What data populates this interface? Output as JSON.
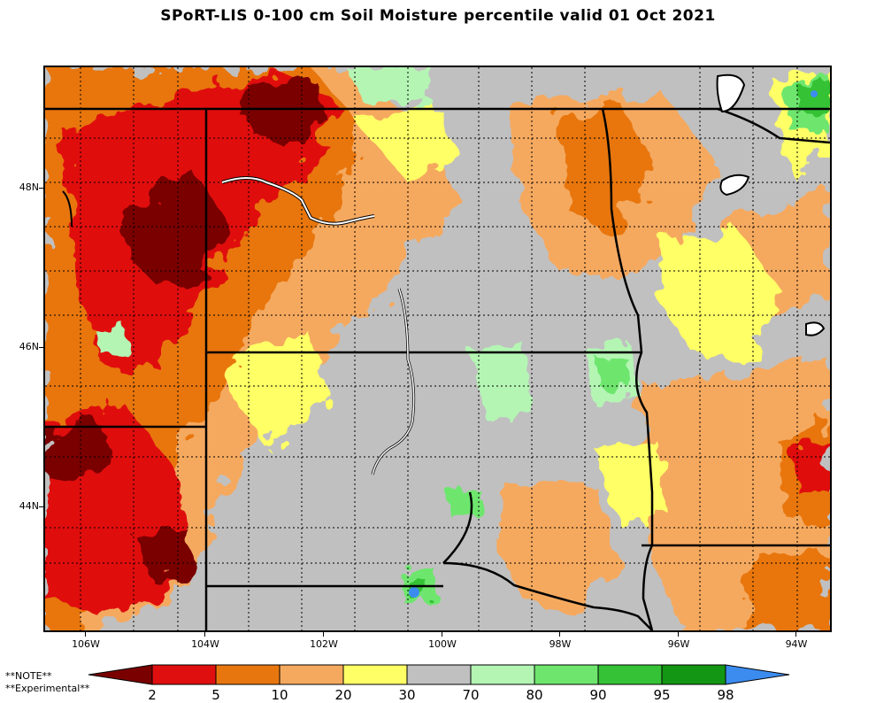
{
  "title": "SPoRT-LIS 0-100 cm Soil Moisture percentile valid 01 Oct 2021",
  "lat_labels": [
    "48N",
    "46N",
    "44N"
  ],
  "lon_labels": [
    "106W",
    "104W",
    "102W",
    "100W",
    "98W",
    "96W",
    "94W"
  ],
  "note": {
    "line1": "**NOTE**",
    "line2": "**Experimental**"
  },
  "colorbar": {
    "labels": [
      "2",
      "5",
      "10",
      "20",
      "30",
      "70",
      "80",
      "90",
      "95",
      "98"
    ],
    "colors": [
      "#7a0000",
      "#e00f0f",
      "#e8760f",
      "#f5a95e",
      "#ffff66",
      "#c0c0c0",
      "#b4f5b4",
      "#6ee66e",
      "#36c236",
      "#139613",
      "#3c8cf0"
    ]
  }
}
